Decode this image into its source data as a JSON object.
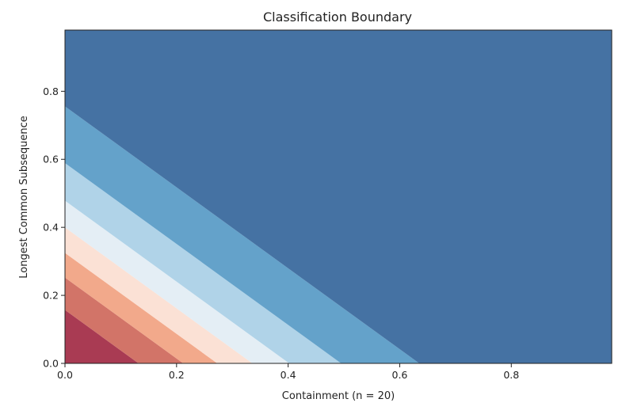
{
  "chart_data": {
    "type": "filled-contour",
    "title": "Classification Boundary",
    "xlabel": "Containment (n = 20)",
    "ylabel": "Longest Common Subsequence",
    "xlim": [
      0.0,
      0.98
    ],
    "ylim": [
      0.0,
      0.98
    ],
    "xticks": [
      "0.0",
      "0.2",
      "0.4",
      "0.6",
      "0.8"
    ],
    "yticks": [
      "0.0",
      "0.2",
      "0.4",
      "0.6",
      "0.8"
    ],
    "grid": false,
    "boundary_slope_y_per_x": -1.19,
    "regions": [
      {
        "x_intercept": 0.0,
        "color": "#a93b53"
      },
      {
        "x_intercept": 0.132,
        "color": "#d27468"
      },
      {
        "x_intercept": 0.212,
        "color": "#f2a98b"
      },
      {
        "x_intercept": 0.273,
        "color": "#fbe1d5"
      },
      {
        "x_intercept": 0.336,
        "color": "#e4eef5"
      },
      {
        "x_intercept": 0.402,
        "color": "#b0d3e8"
      },
      {
        "x_intercept": 0.495,
        "color": "#64a2ca"
      },
      {
        "x_intercept": 0.635,
        "color": "#4572a3"
      }
    ]
  }
}
